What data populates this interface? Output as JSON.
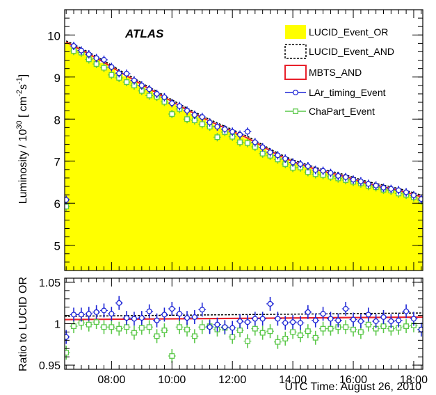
{
  "chart_data": [
    {
      "type": "area",
      "label": "ATLAS",
      "ylabel": "Luminosity / 10",
      "ylabel_sup": "30",
      "ylabel_units": "[ cm",
      "ylabel_units_sup": "-2",
      "ylabel_units2": "s",
      "ylabel_units2_sup": "-1",
      "ylabel_close": "]",
      "ylim": [
        4.4,
        10.6
      ],
      "yticks": [
        "5",
        "6",
        "7",
        "8",
        "9",
        "10"
      ],
      "xlim": [
        6.45,
        18.3
      ],
      "grid": false,
      "legend_position": "top-right",
      "legend": [
        "LUCID_Event_OR",
        "LUCID_Event_AND",
        "MBTS_AND",
        "LAr_timing_Event",
        "ChaPart_Event"
      ],
      "colors": {
        "lucid_or_fill": "#ffff00",
        "lucid_and": "#000000",
        "mbts": "#e8202a",
        "lar": "#1d25d6",
        "chapart": "#5cc84a"
      },
      "x": [
        6.5,
        6.75,
        7.0,
        7.25,
        7.5,
        7.75,
        8.0,
        8.25,
        8.5,
        8.75,
        9.0,
        9.25,
        9.5,
        9.75,
        10.0,
        10.25,
        10.5,
        10.75,
        11.0,
        11.25,
        11.5,
        11.75,
        12.0,
        12.25,
        12.5,
        12.75,
        13.0,
        13.25,
        13.5,
        13.75,
        14.0,
        14.25,
        14.5,
        14.75,
        15.0,
        15.25,
        15.5,
        15.75,
        16.0,
        16.25,
        16.5,
        16.75,
        17.0,
        17.25,
        17.5,
        17.75,
        18.0,
        18.25
      ],
      "series": [
        {
          "name": "LUCID_Event_OR",
          "values": [
            9.82,
            9.73,
            9.63,
            9.54,
            9.44,
            9.34,
            9.23,
            9.12,
            9.02,
            8.92,
            8.81,
            8.71,
            8.61,
            8.51,
            8.41,
            8.31,
            8.21,
            8.12,
            8.03,
            7.94,
            7.86,
            7.78,
            7.7,
            7.62,
            7.54,
            7.44,
            7.34,
            7.24,
            7.14,
            7.06,
            6.98,
            6.92,
            6.86,
            6.8,
            6.75,
            6.71,
            6.67,
            6.62,
            6.57,
            6.51,
            6.46,
            6.42,
            6.38,
            6.34,
            6.3,
            6.25,
            6.2,
            6.14
          ]
        },
        {
          "name": "LUCID_Event_AND",
          "values": [
            9.86,
            9.78,
            9.68,
            9.59,
            9.49,
            9.39,
            9.28,
            9.17,
            9.07,
            8.97,
            8.86,
            8.76,
            8.66,
            8.56,
            8.46,
            8.36,
            8.26,
            8.17,
            8.08,
            7.99,
            7.91,
            7.83,
            7.75,
            7.67,
            7.59,
            7.49,
            7.39,
            7.29,
            7.19,
            7.11,
            7.03,
            6.97,
            6.91,
            6.85,
            6.8,
            6.76,
            6.72,
            6.67,
            6.62,
            6.56,
            6.51,
            6.47,
            6.43,
            6.39,
            6.35,
            6.3,
            6.25,
            6.19
          ]
        },
        {
          "name": "MBTS_AND",
          "values": [
            9.83,
            9.74,
            9.64,
            9.55,
            9.45,
            9.35,
            9.24,
            9.13,
            9.03,
            8.93,
            8.82,
            8.72,
            8.62,
            8.52,
            8.42,
            8.32,
            8.22,
            8.13,
            8.04,
            7.95,
            7.87,
            7.79,
            7.71,
            7.63,
            7.55,
            7.45,
            7.35,
            7.25,
            7.15,
            7.07,
            6.99,
            6.93,
            6.87,
            6.81,
            6.76,
            6.72,
            6.68,
            6.63,
            6.58,
            6.52,
            6.47,
            6.43,
            6.39,
            6.35,
            6.31,
            6.26,
            6.21,
            6.15
          ]
        },
        {
          "name": "LAr_timing_Event",
          "x": [
            6.5,
            6.75,
            7.0,
            7.25,
            7.5,
            7.75,
            8.0,
            8.25,
            8.5,
            8.75,
            9.0,
            9.25,
            9.5,
            9.75,
            10.0,
            10.25,
            10.5,
            10.75,
            11.0,
            11.25,
            11.5,
            11.75,
            12.0,
            12.25,
            12.5,
            12.75,
            13.0,
            13.25,
            13.5,
            13.75,
            14.0,
            14.25,
            14.5,
            14.75,
            15.0,
            15.25,
            15.5,
            15.75,
            16.0,
            16.25,
            16.5,
            16.75,
            17.0,
            17.25,
            17.5,
            17.75,
            18.0,
            18.25
          ],
          "values": [
            6.08,
            9.74,
            9.63,
            9.54,
            9.45,
            9.41,
            9.24,
            9.09,
            9.08,
            8.92,
            8.8,
            8.71,
            8.6,
            8.52,
            8.38,
            8.31,
            8.2,
            8.1,
            8.05,
            7.92,
            7.82,
            7.76,
            7.7,
            7.63,
            7.7,
            7.45,
            7.33,
            7.21,
            7.14,
            7.06,
            6.97,
            6.93,
            6.88,
            6.79,
            6.77,
            6.72,
            6.65,
            6.62,
            6.56,
            6.52,
            6.46,
            6.42,
            6.37,
            6.34,
            6.31,
            6.26,
            6.19,
            6.1
          ]
        },
        {
          "name": "ChaPart_Event",
          "x": [
            6.5,
            6.75,
            7.0,
            7.25,
            7.5,
            7.75,
            8.0,
            8.25,
            8.5,
            8.75,
            9.0,
            9.25,
            9.5,
            9.75,
            10.0,
            10.25,
            10.5,
            10.75,
            11.0,
            11.25,
            11.5,
            11.75,
            12.0,
            12.25,
            12.5,
            12.75,
            13.0,
            13.25,
            13.5,
            13.75,
            14.0,
            14.25,
            14.5,
            14.75,
            15.0,
            15.25,
            15.5,
            15.75,
            16.0,
            16.25,
            16.5,
            16.75,
            17.0,
            17.25,
            17.5,
            17.75,
            18.0,
            18.25
          ],
          "values": [
            5.92,
            9.62,
            9.58,
            9.42,
            9.31,
            9.22,
            9.05,
            8.98,
            8.88,
            8.8,
            8.67,
            8.56,
            8.53,
            8.41,
            8.12,
            8.24,
            8.0,
            7.97,
            7.88,
            7.82,
            7.57,
            7.69,
            7.58,
            7.45,
            7.43,
            7.34,
            7.18,
            7.13,
            7.04,
            6.93,
            6.84,
            6.85,
            6.74,
            6.69,
            6.67,
            6.63,
            6.59,
            6.55,
            6.51,
            6.47,
            6.41,
            6.38,
            6.32,
            6.3,
            6.23,
            6.2,
            6.14,
            6.06
          ]
        }
      ]
    },
    {
      "type": "line",
      "ylabel": "Ratio to LUCID OR",
      "xlabel": "UTC Time: August 26, 2010",
      "ylim": [
        0.945,
        1.055
      ],
      "yticks": [
        "0.95",
        "1",
        "1.05"
      ],
      "xticks": [
        "08:00",
        "10:00",
        "12:00",
        "14:00",
        "16:00",
        "18:00"
      ],
      "xtick_values": [
        8,
        10,
        12,
        14,
        16,
        18
      ],
      "xlim": [
        6.45,
        18.3
      ],
      "series": [
        {
          "name": "LUCID_Event_AND",
          "x": [
            6.45,
            18.3
          ],
          "values": [
            1.009,
            1.013
          ]
        },
        {
          "name": "MBTS_AND",
          "x": [
            6.45,
            18.3
          ],
          "values": [
            1.005,
            1.008
          ]
        },
        {
          "name": "LAr_timing_Event",
          "x": [
            6.5,
            6.75,
            7.0,
            7.25,
            7.5,
            7.75,
            8.0,
            8.25,
            8.5,
            8.75,
            9.0,
            9.25,
            9.5,
            9.75,
            10.0,
            10.25,
            10.5,
            10.75,
            11.0,
            11.25,
            11.5,
            11.75,
            12.0,
            12.25,
            12.5,
            12.75,
            13.0,
            13.25,
            13.5,
            13.75,
            14.0,
            14.25,
            14.5,
            14.75,
            15.0,
            15.25,
            15.5,
            15.75,
            16.0,
            16.25,
            16.5,
            16.75,
            17.0,
            17.25,
            17.5,
            17.75,
            18.0,
            18.25
          ],
          "values": [
            0.984,
            1.011,
            1.011,
            1.012,
            1.014,
            1.016,
            1.012,
            1.025,
            1.007,
            1.006,
            1.007,
            1.015,
            1.004,
            1.011,
            1.018,
            1.012,
            1.007,
            1.008,
            1.017,
            0.996,
            0.999,
            0.996,
            0.995,
            1.003,
            1.002,
            1.006,
            1.006,
            1.024,
            1.006,
            1.001,
            1.002,
            1.001,
            1.014,
            1.004,
            1.012,
            1.006,
            1.004,
            1.018,
            1.005,
            1.003,
            1.011,
            1.003,
            1.008,
            1.003,
            1.004,
            1.015,
            1.006,
            0.993
          ]
        },
        {
          "name": "ChaPart_Event",
          "x": [
            6.5,
            6.75,
            7.0,
            7.25,
            7.5,
            7.75,
            8.0,
            8.25,
            8.5,
            8.75,
            9.0,
            9.25,
            9.5,
            9.75,
            10.0,
            10.25,
            10.5,
            10.75,
            11.0,
            11.25,
            11.5,
            11.75,
            12.0,
            12.25,
            12.5,
            12.75,
            13.0,
            13.25,
            13.5,
            13.75,
            14.0,
            14.25,
            14.5,
            14.75,
            15.0,
            15.25,
            15.5,
            15.75,
            16.0,
            16.25,
            16.5,
            16.75,
            17.0,
            17.25,
            17.5,
            17.75,
            18.0,
            18.25
          ],
          "values": [
            0.965,
            0.997,
            1.001,
            0.999,
            1.002,
            0.996,
            0.996,
            0.994,
            0.996,
            0.989,
            0.995,
            0.996,
            0.985,
            0.992,
            0.961,
            0.996,
            0.993,
            0.985,
            0.996,
            0.997,
            0.993,
            0.995,
            0.984,
            0.992,
            0.979,
            0.994,
            0.989,
            0.991,
            0.978,
            0.982,
            0.99,
            0.986,
            0.991,
            0.983,
            0.994,
            0.994,
            0.996,
            0.996,
            0.993,
            0.99,
            0.999,
            0.994,
            0.997,
            0.994,
            0.995,
            0.997,
            0.998,
            0.993
          ]
        }
      ]
    }
  ]
}
